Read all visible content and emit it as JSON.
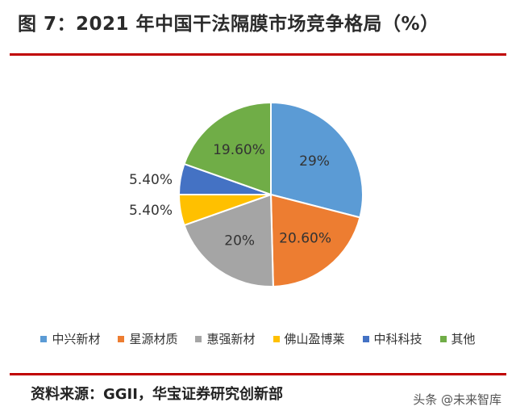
{
  "title": "图 7：2021 年中国干法隔膜市场竞争格局（%）",
  "source_note": "资料来源：GGII，华宝证券研究创新部",
  "watermark": "头条 @未来智库",
  "chart_data": {
    "type": "pie",
    "unit": "%",
    "start_angle_deg": 0,
    "direction": "clockwise",
    "legend_position": "bottom",
    "slices": [
      {
        "name": "中兴新材",
        "value": 29,
        "label": "29%",
        "color": "#5b9bd5",
        "label_placement": "inside"
      },
      {
        "name": "星源材质",
        "value": 20.6,
        "label": "20.60%",
        "color": "#ed7d31",
        "label_placement": "inside"
      },
      {
        "name": "惠强新材",
        "value": 20,
        "label": "20%",
        "color": "#a5a5a5",
        "label_placement": "inside"
      },
      {
        "name": "佛山盈博莱",
        "value": 5.4,
        "label": "5.40%",
        "color": "#ffc000",
        "label_placement": "outside"
      },
      {
        "name": "中科科技",
        "value": 5.4,
        "label": "5.40%",
        "color": "#4472c4",
        "label_placement": "outside"
      },
      {
        "name": "其他",
        "value": 19.6,
        "label": "19.60%",
        "color": "#70ad47",
        "label_placement": "inside"
      }
    ]
  }
}
